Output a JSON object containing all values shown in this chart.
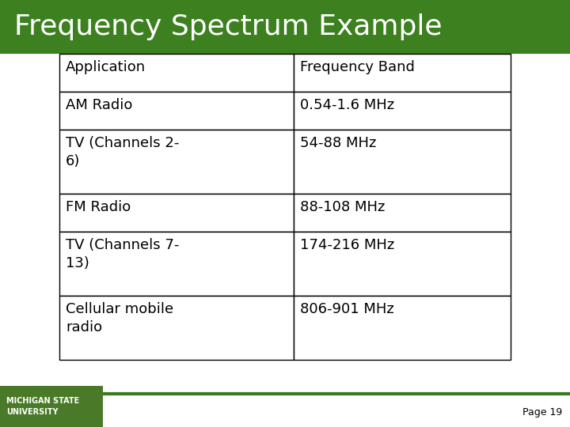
{
  "title": "Frequency Spectrum Example",
  "title_bg_top": "#4a8a28",
  "title_bg_bottom": "#6aaa48",
  "title_text_color": "#ffffff",
  "bg_color": "#ffffff",
  "table_headers": [
    "Application",
    "Frequency Band"
  ],
  "table_rows": [
    [
      "AM Radio",
      "0.54-1.6 MHz"
    ],
    [
      "TV (Channels 2-\n6)",
      "54-88 MHz"
    ],
    [
      "FM Radio",
      "88-108 MHz"
    ],
    [
      "TV (Channels 7-\n13)",
      "174-216 MHz"
    ],
    [
      "Cellular mobile\nradio",
      "806-901 MHz"
    ]
  ],
  "footer_text": "Page 19",
  "footer_line_color": "#3a7a20",
  "msu_text": "MICHIGAN STATE\nUNIVERSITY",
  "msu_bg_color": "#4a7a28",
  "msu_text_color": "#ffffff",
  "table_font_size": 13,
  "title_font_size": 26
}
